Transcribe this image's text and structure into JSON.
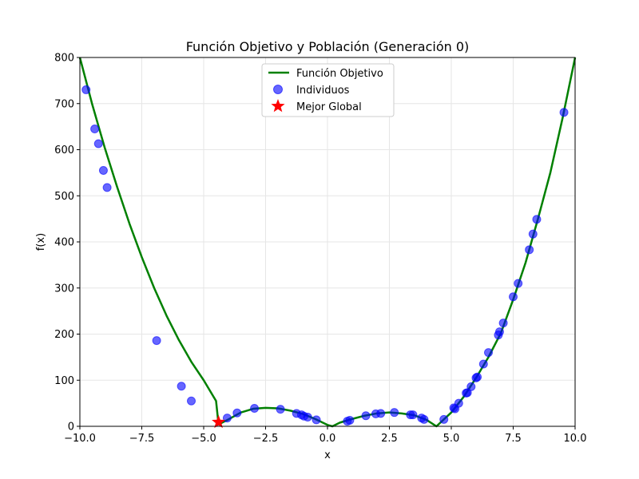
{
  "chart_data": {
    "type": "line",
    "title": "Función Objetivo y Población (Generación 0)",
    "xlabel": "x",
    "ylabel": "f(x)",
    "xlim": [
      -10,
      10
    ],
    "ylim": [
      0,
      800
    ],
    "x_ticks": [
      -10,
      -7.5,
      -5,
      -2.5,
      0,
      2.5,
      5,
      7.5,
      10
    ],
    "x_tick_labels": [
      "−10.0",
      "−7.5",
      "−5.0",
      "−2.5",
      "0.0",
      "2.5",
      "5.0",
      "7.5",
      "10.0"
    ],
    "y_ticks": [
      0,
      100,
      200,
      300,
      400,
      500,
      600,
      700,
      800
    ],
    "y_tick_labels": [
      "0",
      "100",
      "200",
      "300",
      "400",
      "500",
      "600",
      "700",
      "800"
    ],
    "grid": true,
    "legend_position": "top-center",
    "objective": {
      "name": "Función Objetivo",
      "color": "#008000",
      "points": [
        [
          -10,
          800
        ],
        [
          -9.5,
          698
        ],
        [
          -9,
          605
        ],
        [
          -8.5,
          520
        ],
        [
          -8,
          440
        ],
        [
          -7.5,
          367
        ],
        [
          -7,
          300
        ],
        [
          -6.5,
          240
        ],
        [
          -6,
          187
        ],
        [
          -5.5,
          140
        ],
        [
          -5,
          100
        ],
        [
          -4.5,
          55
        ],
        [
          -4.4,
          4
        ],
        [
          -4,
          15
        ],
        [
          -3.5,
          30
        ],
        [
          -3,
          38
        ],
        [
          -2.5,
          40
        ],
        [
          -2,
          39
        ],
        [
          -1.5,
          34
        ],
        [
          -1,
          27
        ],
        [
          -0.5,
          16
        ],
        [
          0,
          3
        ],
        [
          0.2,
          0
        ],
        [
          0.5,
          8
        ],
        [
          1,
          16
        ],
        [
          1.5,
          23
        ],
        [
          2,
          28
        ],
        [
          2.5,
          30
        ],
        [
          3,
          28
        ],
        [
          3.5,
          24
        ],
        [
          4,
          14
        ],
        [
          4.4,
          0
        ],
        [
          5,
          30
        ],
        [
          5.5,
          64
        ],
        [
          6,
          105
        ],
        [
          6.5,
          150
        ],
        [
          7,
          202
        ],
        [
          7.5,
          275
        ],
        [
          8,
          355
        ],
        [
          8.5,
          450
        ],
        [
          9,
          550
        ],
        [
          9.5,
          670
        ],
        [
          10,
          800
        ]
      ]
    },
    "individuals": {
      "name": "Individuos",
      "color": "#0000ff",
      "points": [
        [
          -9.75,
          730
        ],
        [
          -9.4,
          645
        ],
        [
          -9.25,
          613
        ],
        [
          -9.05,
          555
        ],
        [
          -8.9,
          518
        ],
        [
          -6.9,
          186
        ],
        [
          -5.9,
          87
        ],
        [
          -5.5,
          55
        ],
        [
          -4.05,
          18
        ],
        [
          -3.65,
          29
        ],
        [
          -2.95,
          39
        ],
        [
          -1.9,
          37
        ],
        [
          -1.25,
          28
        ],
        [
          -1.05,
          25
        ],
        [
          -0.95,
          22
        ],
        [
          -0.8,
          20
        ],
        [
          -0.45,
          14
        ],
        [
          0.8,
          11
        ],
        [
          0.9,
          13
        ],
        [
          1.55,
          23
        ],
        [
          1.95,
          27
        ],
        [
          2.15,
          28
        ],
        [
          2.7,
          30
        ],
        [
          3.35,
          25
        ],
        [
          3.45,
          25
        ],
        [
          3.8,
          18
        ],
        [
          3.9,
          15
        ],
        [
          4.7,
          15
        ],
        [
          5.1,
          40
        ],
        [
          5.15,
          38
        ],
        [
          5.3,
          50
        ],
        [
          5.6,
          72
        ],
        [
          5.65,
          73
        ],
        [
          5.8,
          86
        ],
        [
          6.0,
          105
        ],
        [
          6.05,
          107
        ],
        [
          6.3,
          135
        ],
        [
          6.5,
          160
        ],
        [
          6.9,
          198
        ],
        [
          6.95,
          205
        ],
        [
          7.1,
          224
        ],
        [
          7.5,
          281
        ],
        [
          7.7,
          310
        ],
        [
          8.15,
          383
        ],
        [
          8.3,
          417
        ],
        [
          8.45,
          449
        ],
        [
          9.55,
          681
        ]
      ]
    },
    "best": {
      "name": "Mejor Global",
      "color": "#ff0000",
      "x": -4.4,
      "y": 9
    }
  }
}
